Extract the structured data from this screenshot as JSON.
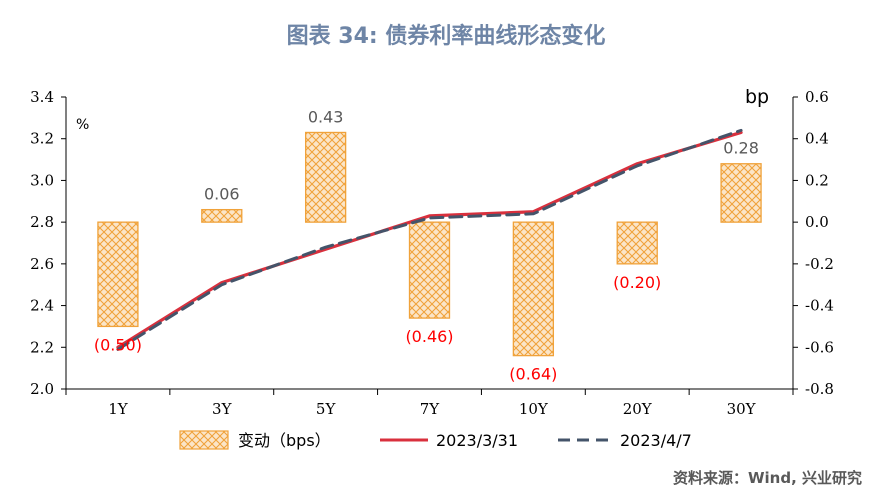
{
  "chart_data": {
    "type": "bar+line",
    "title": "图表 34: 债券利率曲线形态变化",
    "categories": [
      "1Y",
      "3Y",
      "5Y",
      "7Y",
      "10Y",
      "20Y",
      "30Y"
    ],
    "left_axis": {
      "label": "%",
      "min": 2.0,
      "max": 3.4,
      "ticks": [
        "2.0",
        "2.2",
        "2.4",
        "2.6",
        "2.8",
        "3.0",
        "3.2",
        "3.4"
      ]
    },
    "right_axis": {
      "label": "bp",
      "min": -0.8,
      "max": 0.6,
      "ticks": [
        "-0.8",
        "-0.6",
        "-0.4",
        "-0.2",
        "0.0",
        "0.2",
        "0.4",
        "0.6"
      ]
    },
    "bar_series": {
      "name": "变动（bps）",
      "values": [
        -0.5,
        0.06,
        0.43,
        -0.46,
        -0.64,
        -0.2,
        0.28
      ],
      "labels": [
        "(0.50)",
        "0.06",
        "0.43",
        "(0.46)",
        "(0.64)",
        "(0.20)",
        "0.28"
      ],
      "fill_color": "#fbe5c8",
      "pattern_color": "#f0a23a",
      "negative_label_color": "#ff0000",
      "positive_label_color": "#595959"
    },
    "line_series": [
      {
        "name": "2023/3/31",
        "values": [
          2.2,
          2.51,
          2.67,
          2.83,
          2.85,
          3.08,
          3.23
        ],
        "color": "#d9303d",
        "style": "solid"
      },
      {
        "name": "2023/4/7",
        "values": [
          2.19,
          2.5,
          2.68,
          2.82,
          2.84,
          3.07,
          3.24
        ],
        "color": "#44546a",
        "style": "dashed"
      }
    ],
    "grid": false,
    "legend_position": "bottom"
  },
  "source": "资料来源：Wind, 兴业研究"
}
